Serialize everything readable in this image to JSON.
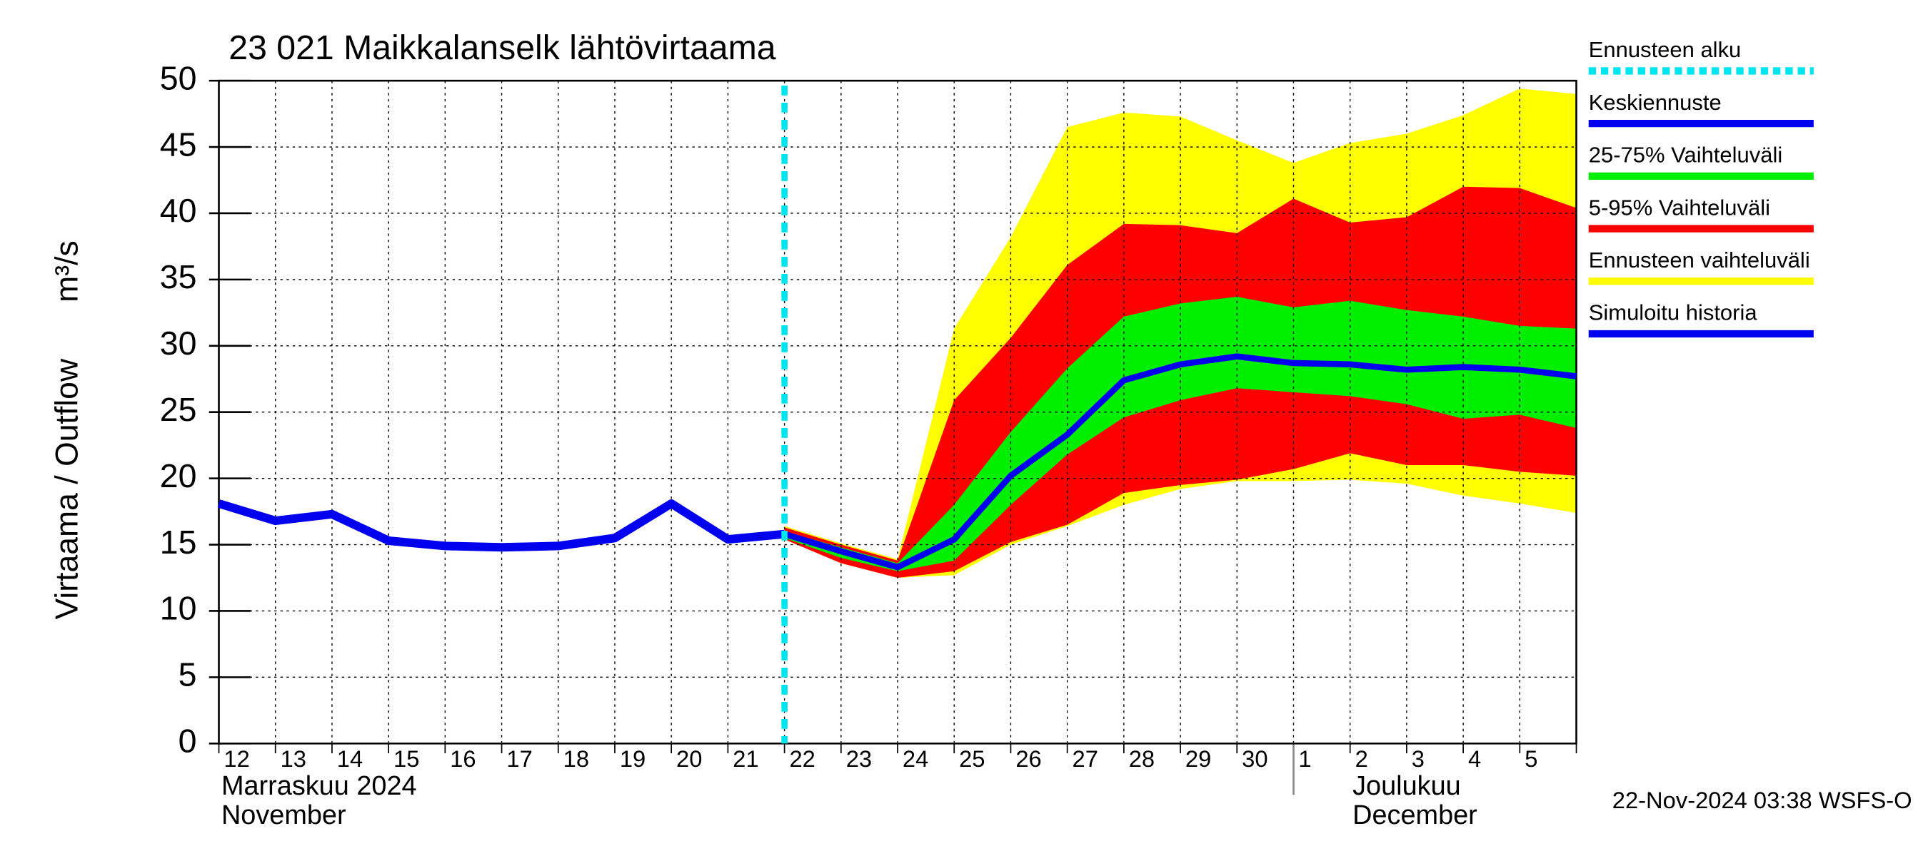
{
  "chart_data": {
    "type": "band-forecast",
    "title": "23 021 Maikkalanselk lähtövirtaama",
    "y_label": "Virtaama / Outflow",
    "y_unit": "m³/s",
    "month_labels": [
      "Marraskuu 2024",
      "November",
      "Joulukuu",
      "December"
    ],
    "timestamp": "22-Nov-2024 03:38 WSFS-O",
    "categories": [
      "12",
      "13",
      "14",
      "15",
      "16",
      "17",
      "18",
      "19",
      "20",
      "21",
      "22",
      "23",
      "24",
      "25",
      "26",
      "27",
      "28",
      "29",
      "30",
      "1",
      "2",
      "3",
      "4",
      "5",
      null
    ],
    "month_start_index": 19,
    "forecast_start_index": 10,
    "forecast_start_name": "Ennusteen alku",
    "forecast_start_color": "#00e5ee",
    "ylim": [
      0,
      50
    ],
    "yticks": [
      0,
      5,
      10,
      15,
      20,
      25,
      30,
      35,
      40,
      45,
      50
    ],
    "grid": true,
    "bands": [
      {
        "name": "Ennusteen vaihteluväli",
        "color": "#ffff00",
        "low": [
          null,
          null,
          null,
          null,
          null,
          null,
          null,
          null,
          null,
          null,
          15.4,
          13.6,
          12.5,
          12.7,
          15.0,
          16.4,
          18.0,
          19.2,
          19.8,
          19.8,
          19.9,
          19.6,
          18.7,
          18.1,
          17.4
        ],
        "high": [
          null,
          null,
          null,
          null,
          null,
          null,
          null,
          null,
          null,
          null,
          16.4,
          15.1,
          13.9,
          31.3,
          38.2,
          46.5,
          47.6,
          47.3,
          45.5,
          43.8,
          45.3,
          46.0,
          47.4,
          49.4,
          49.0
        ]
      },
      {
        "name": "5-95% Vaihteluväli",
        "color": "#ff0000",
        "low": [
          null,
          null,
          null,
          null,
          null,
          null,
          null,
          null,
          null,
          null,
          15.4,
          13.6,
          12.5,
          13.0,
          15.2,
          16.5,
          18.9,
          19.5,
          19.9,
          20.7,
          21.9,
          21.0,
          21.0,
          20.5,
          20.2
        ],
        "high": [
          null,
          null,
          null,
          null,
          null,
          null,
          null,
          null,
          null,
          null,
          16.3,
          15.0,
          13.8,
          25.9,
          30.6,
          36.1,
          39.2,
          39.1,
          38.5,
          41.1,
          39.3,
          39.7,
          42.0,
          41.9,
          40.4
        ]
      },
      {
        "name": "25-75% Vaihteluväli",
        "color": "#00ee00",
        "low": [
          null,
          null,
          null,
          null,
          null,
          null,
          null,
          null,
          null,
          null,
          15.5,
          14.0,
          13.0,
          13.8,
          18.0,
          21.8,
          24.6,
          25.9,
          26.8,
          26.5,
          26.2,
          25.6,
          24.5,
          24.8,
          23.8
        ],
        "high": [
          null,
          null,
          null,
          null,
          null,
          null,
          null,
          null,
          null,
          null,
          16.0,
          14.8,
          13.6,
          18.0,
          23.5,
          28.3,
          32.2,
          33.2,
          33.7,
          32.9,
          33.4,
          32.7,
          32.2,
          31.5,
          31.3
        ]
      }
    ],
    "series": [
      {
        "name": "Keskiennuste",
        "color": "#0000ee",
        "values": [
          null,
          null,
          null,
          null,
          null,
          null,
          null,
          null,
          null,
          null,
          15.8,
          14.5,
          13.3,
          15.4,
          20.2,
          23.3,
          27.4,
          28.6,
          29.2,
          28.7,
          28.6,
          28.2,
          28.4,
          28.2,
          27.7
        ]
      },
      {
        "name": "Simuloitu historia",
        "color": "#0000ee",
        "values": [
          18.1,
          16.8,
          17.3,
          15.3,
          14.9,
          14.8,
          14.9,
          15.5,
          18.1,
          15.4,
          15.8,
          null,
          null,
          null,
          null,
          null,
          null,
          null,
          null,
          null,
          null,
          null,
          null,
          null,
          null
        ]
      }
    ]
  }
}
